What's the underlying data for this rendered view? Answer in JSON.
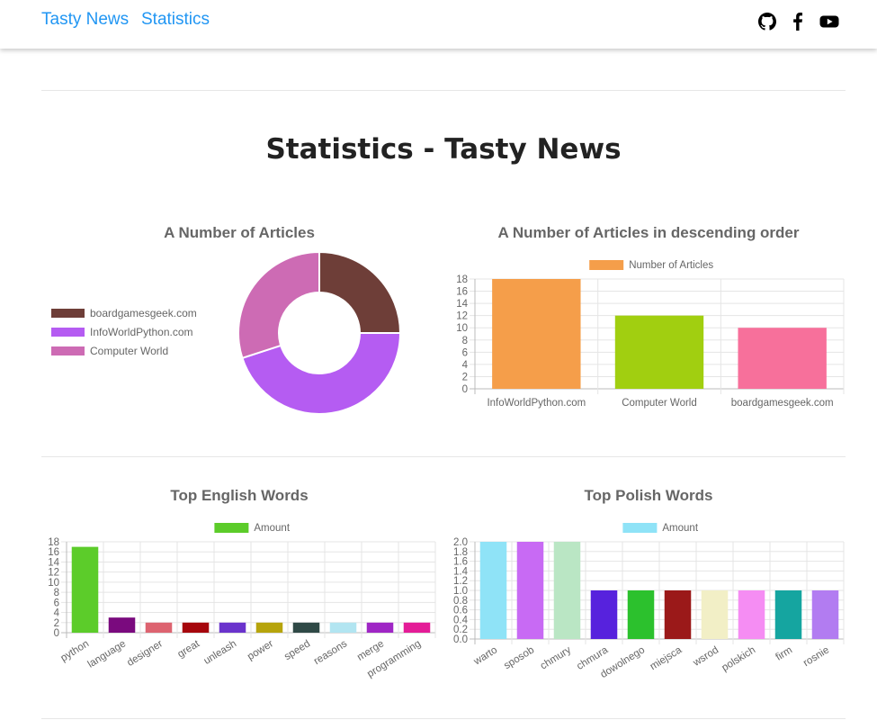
{
  "nav": {
    "brand": "Tasty News",
    "link": "Statistics",
    "icons": [
      "github-icon",
      "facebook-icon",
      "youtube-icon"
    ]
  },
  "page": {
    "title": "Statistics - Tasty News"
  },
  "colors": {
    "link": "#2196f3",
    "grid": "#e5e5e5",
    "axis_text": "#666666"
  },
  "charts": [
    {
      "id": "articles-doughnut",
      "type": "doughnut",
      "title": "A Number of Articles",
      "legend_position": "left",
      "labels": [
        "boardgamesgeek.com",
        "InfoWorldPython.com",
        "Computer World"
      ],
      "values": [
        10,
        18,
        12
      ],
      "colors": [
        "#6e3e38",
        "#b55cf2",
        "#cd6bb4"
      ]
    },
    {
      "id": "articles-bar",
      "type": "bar",
      "title": "A Number of Articles in descending order",
      "legend": {
        "label": "Number of Articles",
        "color": "#f59e4a"
      },
      "categories": [
        "InfoWorldPython.com",
        "Computer World",
        "boardgamesgeek.com"
      ],
      "values": [
        18,
        12,
        10
      ],
      "colors": [
        "#f59e4a",
        "#a1cf10",
        "#f7709b"
      ],
      "ylim": [
        0,
        18
      ],
      "ystep": 2,
      "decimals": 0,
      "rotate": false
    },
    {
      "id": "english-words",
      "type": "bar",
      "title": "Top English Words",
      "legend": {
        "label": "Amount",
        "color": "#5ccc2a"
      },
      "categories": [
        "python",
        "language",
        "designer",
        "great",
        "unleash",
        "power",
        "speed",
        "reasons",
        "merge",
        "programming"
      ],
      "values": [
        17,
        3,
        2,
        2,
        2,
        2,
        2,
        2,
        2,
        2
      ],
      "colors": [
        "#5ccc2a",
        "#7a0a7e",
        "#dd6370",
        "#a6060c",
        "#6a33cc",
        "#b6a40c",
        "#2f4946",
        "#b2e5f1",
        "#9f26c5",
        "#e41c97"
      ],
      "ylim": [
        0,
        18
      ],
      "ystep": 2,
      "decimals": 0,
      "rotate": true
    },
    {
      "id": "polish-words",
      "type": "bar",
      "title": "Top Polish Words",
      "legend": {
        "label": "Amount",
        "color": "#8fe3f7"
      },
      "categories": [
        "warto",
        "sposob",
        "chmury",
        "chmura",
        "dowolnego",
        "miejsca",
        "wsrod",
        "polskich",
        "firm",
        "rosnie"
      ],
      "values": [
        2,
        2,
        2,
        1,
        1,
        1,
        1,
        1,
        1,
        1
      ],
      "colors": [
        "#8fe3f7",
        "#c86af4",
        "#bae6c4",
        "#5722dd",
        "#2cc12d",
        "#9b1919",
        "#f2efc6",
        "#f58df3",
        "#15a5a0",
        "#b27cf1"
      ],
      "ylim": [
        0,
        2
      ],
      "ystep": 0.2,
      "decimals": 1,
      "rotate": true
    }
  ]
}
